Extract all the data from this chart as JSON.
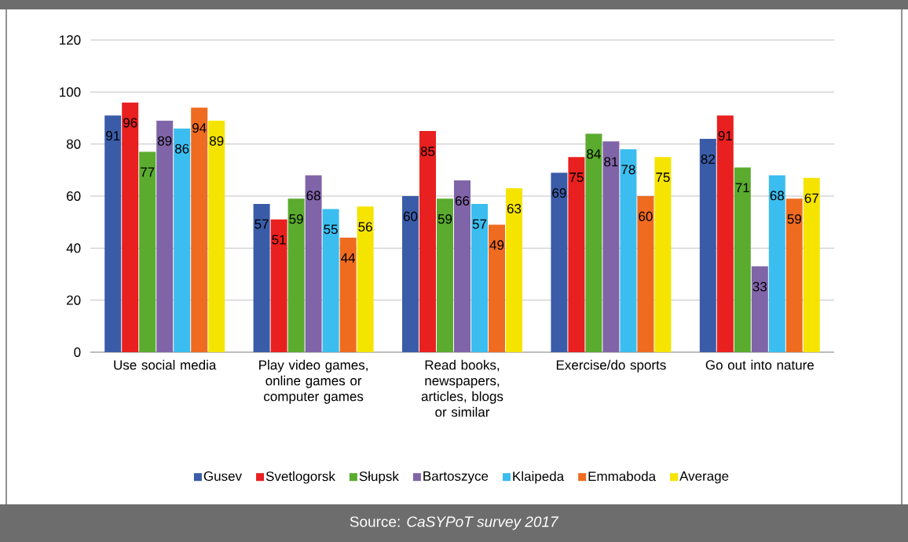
{
  "chart_data": {
    "type": "bar",
    "categories": [
      "Use social media",
      "Play video games, online games or computer games",
      "Read books, newspapers, articles, blogs or similar",
      "Exercise/do sports",
      "Go out into nature"
    ],
    "series": [
      {
        "name": "Gusev",
        "color": "#3a5ca8",
        "values": [
          91,
          57,
          60,
          69,
          82
        ]
      },
      {
        "name": "Svetlogorsk",
        "color": "#e8201f",
        "values": [
          96,
          51,
          85,
          75,
          91
        ]
      },
      {
        "name": "Słupsk",
        "color": "#5aab2e",
        "values": [
          77,
          59,
          59,
          84,
          71
        ]
      },
      {
        "name": "Bartoszyce",
        "color": "#8064a8",
        "values": [
          89,
          68,
          66,
          81,
          33
        ]
      },
      {
        "name": "Klaipeda",
        "color": "#3bbdef",
        "values": [
          86,
          55,
          57,
          78,
          68
        ]
      },
      {
        "name": "Emmaboda",
        "color": "#ef6b1f",
        "values": [
          94,
          44,
          49,
          60,
          59
        ]
      },
      {
        "name": "Average",
        "color": "#f5e400",
        "values": [
          89,
          56,
          63,
          75,
          67
        ]
      }
    ],
    "ylim": [
      0,
      120
    ],
    "yticks": [
      0,
      20,
      40,
      60,
      80,
      100,
      120
    ],
    "grid": "y",
    "legend": "bottom",
    "data_labels": true,
    "annotations": [
      "Source: *CaSYPoT survey 2017*"
    ]
  }
}
